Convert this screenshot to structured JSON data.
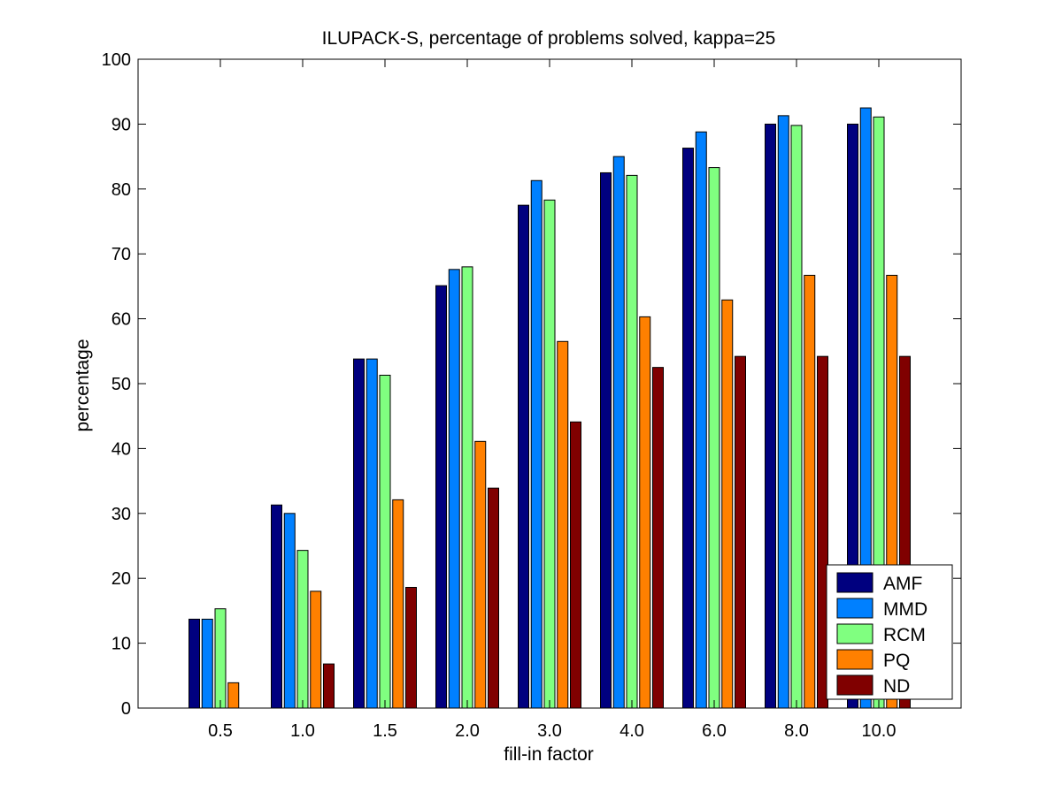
{
  "chart_data": {
    "type": "bar",
    "title": "ILUPACK-S, percentage of problems solved, kappa=25",
    "xlabel": "fill-in factor",
    "ylabel": "percentage",
    "ylim": [
      0,
      100
    ],
    "yticks": [
      0,
      10,
      20,
      30,
      40,
      50,
      60,
      70,
      80,
      90,
      100
    ],
    "categories": [
      "0.5",
      "1.0",
      "1.5",
      "2.0",
      "3.0",
      "4.0",
      "6.0",
      "8.0",
      "10.0"
    ],
    "grid": false,
    "legend_position": "bottom-right",
    "series": [
      {
        "name": "AMF",
        "color": "#00007f",
        "values": [
          13.7,
          31.3,
          53.8,
          65.1,
          77.5,
          82.5,
          86.3,
          90.0,
          90.0
        ]
      },
      {
        "name": "MMD",
        "color": "#0080ff",
        "values": [
          13.7,
          30.0,
          53.8,
          67.6,
          81.3,
          85.0,
          88.8,
          91.3,
          92.5
        ]
      },
      {
        "name": "RCM",
        "color": "#80ff80",
        "values": [
          15.3,
          24.3,
          51.3,
          68.0,
          78.3,
          82.1,
          83.3,
          89.8,
          91.1
        ]
      },
      {
        "name": "PQ",
        "color": "#ff8000",
        "values": [
          3.9,
          18.0,
          32.1,
          41.1,
          56.5,
          60.3,
          62.9,
          66.7,
          66.7
        ]
      },
      {
        "name": "ND",
        "color": "#800000",
        "values": [
          0,
          6.8,
          18.6,
          33.9,
          44.1,
          52.5,
          54.2,
          54.2,
          54.2
        ]
      }
    ]
  }
}
